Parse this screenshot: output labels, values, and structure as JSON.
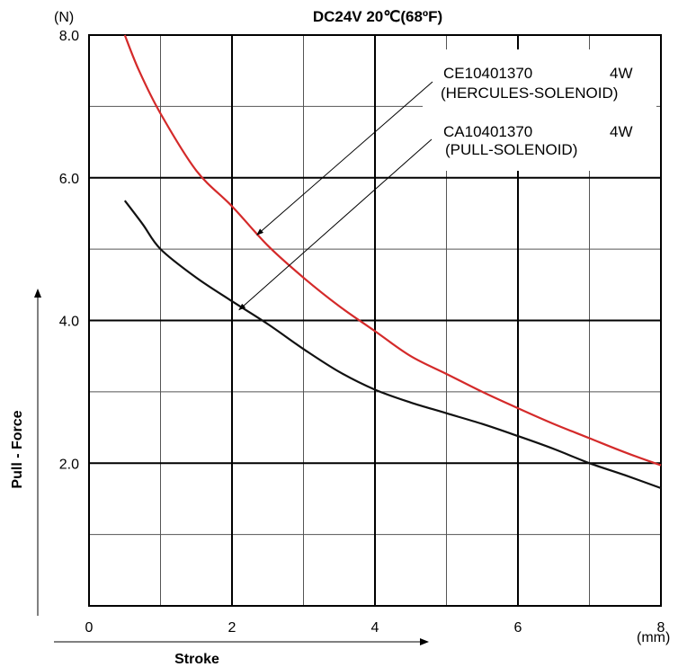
{
  "chart_data": {
    "type": "line",
    "title": "DC24V  20℃(68ºF)",
    "ylabel": "Pull - Force",
    "xlabel": "Stroke",
    "y_unit": "(N)",
    "x_unit": "(mm)",
    "xlim": [
      0,
      8
    ],
    "ylim": [
      0,
      8
    ],
    "x_ticks": [
      {
        "value": 0,
        "label": "0"
      },
      {
        "value": 2,
        "label": "2"
      },
      {
        "value": 4,
        "label": "4"
      },
      {
        "value": 6,
        "label": "6"
      },
      {
        "value": 8,
        "label": "8"
      }
    ],
    "y_ticks": [
      {
        "value": 2,
        "label": "2.0"
      },
      {
        "value": 4,
        "label": "4.0"
      },
      {
        "value": 6,
        "label": "6.0"
      },
      {
        "value": 8,
        "label": "8.0"
      }
    ],
    "grid": true,
    "series": [
      {
        "name": "CE10401370 4W (HERCULES-SOLENOID)",
        "color": "#d42a2a",
        "x": [
          0.5,
          0.7,
          1.0,
          1.5,
          2.0,
          2.5,
          3.0,
          3.5,
          4.0,
          4.5,
          5.0,
          5.5,
          6.0,
          6.5,
          7.0,
          7.5,
          8.0
        ],
        "y": [
          8.0,
          7.5,
          6.9,
          6.1,
          5.6,
          5.05,
          4.6,
          4.2,
          3.85,
          3.5,
          3.25,
          3.0,
          2.77,
          2.55,
          2.35,
          2.15,
          1.97
        ]
      },
      {
        "name": "CA10401370 4W (PULL-SOLENOID)",
        "color": "#111111",
        "x": [
          0.5,
          0.75,
          1.0,
          1.5,
          2.0,
          2.5,
          3.0,
          3.5,
          4.0,
          4.5,
          5.0,
          5.5,
          6.0,
          6.5,
          7.0,
          7.5,
          8.0
        ],
        "y": [
          5.68,
          5.35,
          5.0,
          4.6,
          4.27,
          3.95,
          3.6,
          3.28,
          3.03,
          2.85,
          2.7,
          2.55,
          2.38,
          2.2,
          2.0,
          1.83,
          1.65
        ]
      }
    ],
    "annotations": [
      {
        "model": "CE10401370",
        "power": "4W",
        "type": "(HERCULES-SOLENOID)",
        "arrow_to": {
          "x": 2.35,
          "y": 5.2
        }
      },
      {
        "model": "CA10401370",
        "power": "4W",
        "type": "(PULL-SOLENOID)",
        "arrow_to": {
          "x": 2.1,
          "y": 4.15
        }
      }
    ]
  }
}
